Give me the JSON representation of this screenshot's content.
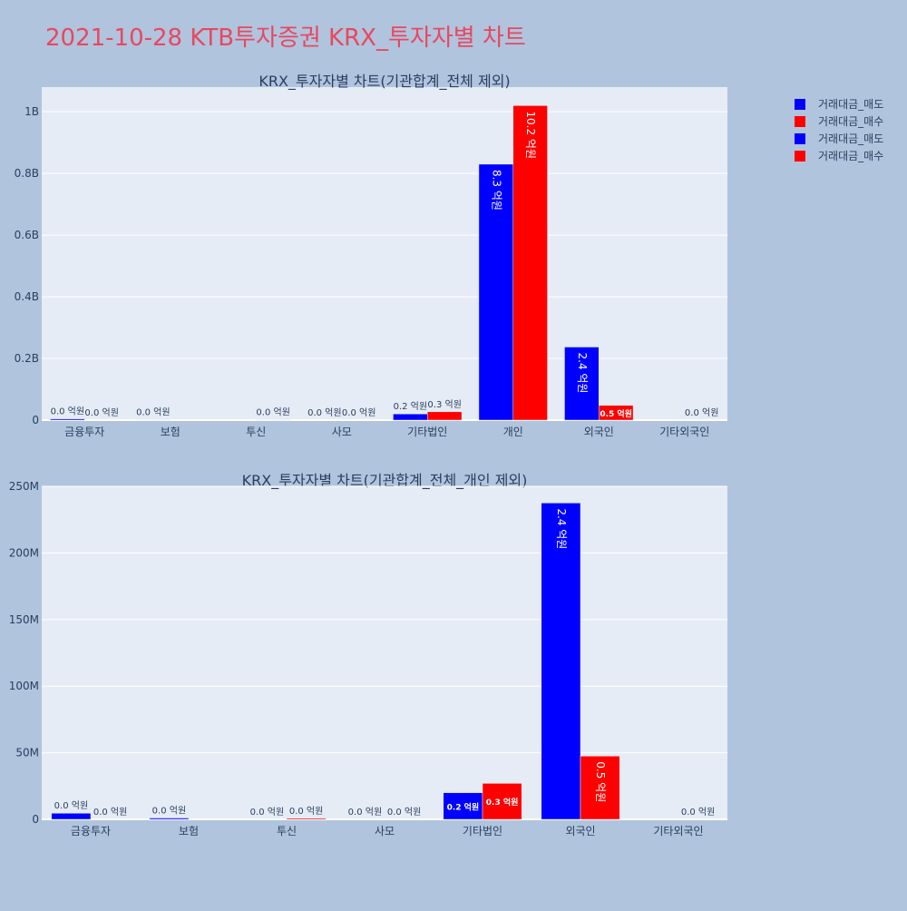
{
  "page_title": "2021-10-28 KTB투자증권 KRX_투자자별 차트",
  "title_color": "#e8485f",
  "legend": {
    "items": [
      {
        "label": "거래대금_매도",
        "color": "#0000ff"
      },
      {
        "label": "거래대금_매수",
        "color": "#ff0000"
      },
      {
        "label": "거래대금_매도",
        "color": "#0000ff"
      },
      {
        "label": "거래대금_매수",
        "color": "#ff0000"
      }
    ]
  },
  "chart_data": [
    {
      "type": "bar",
      "title": "KRX_투자자별 차트(기관합계_전체 제외)",
      "categories": [
        "금융투자",
        "보험",
        "투신",
        "사모",
        "기타법인",
        "개인",
        "외국인",
        "기타외국인"
      ],
      "series": [
        {
          "name": "거래대금_매도",
          "color": "#0000ff",
          "values": [
            4000000,
            1000000,
            0,
            0,
            20000000,
            830000000,
            237000000,
            0
          ],
          "labels": [
            "0.0 억원",
            "0.0 억원",
            "",
            "0.0 억원",
            "0.2 억원",
            "8.3 억원",
            "2.4 억원",
            ""
          ]
        },
        {
          "name": "거래대금_매수",
          "color": "#ff0000",
          "values": [
            0,
            0,
            1000000,
            0,
            27000000,
            1020000000,
            48000000,
            0
          ],
          "labels": [
            "0.0 억원",
            "",
            "0.0 억원",
            "0.0 억원",
            "0.3 억원",
            "10.2 억원",
            "0.5 억원",
            "0.0 억원"
          ]
        }
      ],
      "ylim": [
        0,
        1080000000
      ],
      "yticks": [
        0,
        200000000,
        400000000,
        600000000,
        800000000,
        1000000000
      ],
      "ytick_labels": [
        "0",
        "0.2B",
        "0.4B",
        "0.6B",
        "0.8B",
        "1B"
      ],
      "grid": true,
      "xlabel": "",
      "ylabel": ""
    },
    {
      "type": "bar",
      "title": "KRX_투자자별 차트(기관합계_전체_개인 제외)",
      "categories": [
        "금융투자",
        "보험",
        "투신",
        "사모",
        "기타법인",
        "외국인",
        "기타외국인"
      ],
      "series": [
        {
          "name": "거래대금_매도",
          "color": "#0000ff",
          "values": [
            4600000,
            1000000,
            0,
            0,
            20000000,
            237500000,
            0
          ],
          "labels": [
            "0.0 억원",
            "0.0 억원",
            "0.0 억원",
            "0.0 억원",
            "0.2 억원",
            "2.4 억원",
            ""
          ]
        },
        {
          "name": "거래대금_매수",
          "color": "#ff0000",
          "values": [
            0,
            0,
            800000,
            0,
            27000000,
            47500000,
            0
          ],
          "labels": [
            "0.0 억원",
            "",
            "0.0 억원",
            "0.0 억원",
            "0.3 억원",
            "0.5 억원",
            "0.0 억원"
          ]
        }
      ],
      "ylim": [
        0,
        250000000
      ],
      "yticks": [
        0,
        50000000,
        100000000,
        150000000,
        200000000,
        250000000
      ],
      "ytick_labels": [
        "0",
        "50M",
        "100M",
        "150M",
        "200M",
        "250M"
      ],
      "grid": true,
      "xlabel": "",
      "ylabel": ""
    }
  ]
}
